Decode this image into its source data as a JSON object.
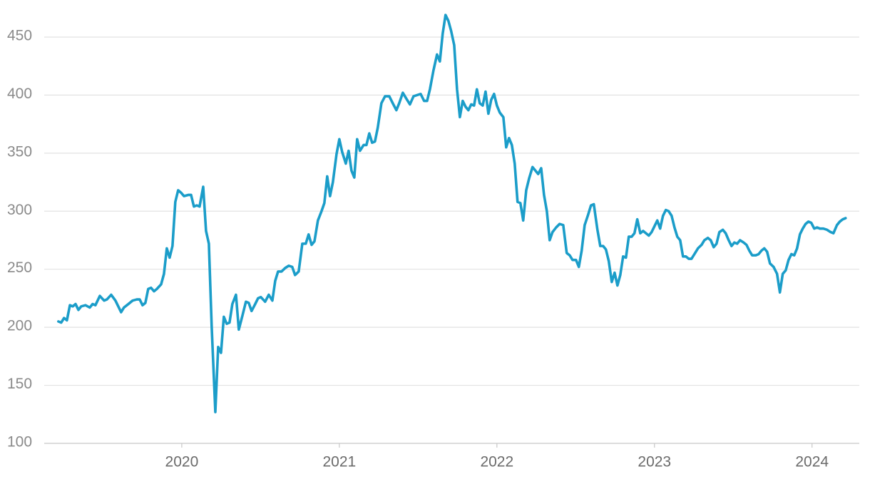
{
  "chart_data": {
    "type": "line",
    "color": "#1b9dc9",
    "grid": true,
    "xlim": [
      2019.127,
      2024.3
    ],
    "xticks": [
      2020,
      2021,
      2022,
      2023,
      2024
    ],
    "ylim": [
      100,
      470
    ],
    "yticks": [
      100,
      150,
      200,
      250,
      300,
      350,
      400,
      450
    ],
    "x": [
      2019.217,
      2019.235,
      2019.253,
      2019.271,
      2019.29,
      2019.308,
      2019.326,
      2019.344,
      2019.362,
      2019.389,
      2019.416,
      2019.434,
      2019.452,
      2019.48,
      2019.507,
      2019.525,
      2019.552,
      2019.579,
      2019.615,
      2019.633,
      2019.661,
      2019.688,
      2019.715,
      2019.733,
      2019.751,
      2019.769,
      2019.787,
      2019.805,
      2019.824,
      2019.842,
      2019.869,
      2019.887,
      2019.905,
      2019.923,
      2019.941,
      2019.959,
      2019.977,
      2019.995,
      2020.014,
      2020.041,
      2020.059,
      2020.077,
      2020.095,
      2020.113,
      2020.136,
      2020.154,
      2020.172,
      2020.19,
      2020.213,
      2020.231,
      2020.249,
      2020.267,
      2020.285,
      2020.303,
      2020.321,
      2020.344,
      2020.362,
      2020.385,
      2020.407,
      2020.425,
      2020.443,
      2020.466,
      2020.484,
      2020.502,
      2020.529,
      2020.552,
      2020.575,
      2020.593,
      2020.611,
      2020.633,
      2020.656,
      2020.679,
      2020.701,
      2020.719,
      2020.742,
      2020.765,
      2020.787,
      2020.805,
      2020.824,
      2020.842,
      2020.864,
      2020.887,
      2020.905,
      2020.923,
      2020.941,
      2020.959,
      2020.982,
      2021.0,
      2021.018,
      2021.041,
      2021.059,
      2021.077,
      2021.095,
      2021.113,
      2021.131,
      2021.154,
      2021.172,
      2021.19,
      2021.208,
      2021.226,
      2021.244,
      2021.267,
      2021.29,
      2021.317,
      2021.339,
      2021.362,
      2021.38,
      2021.403,
      2021.425,
      2021.448,
      2021.471,
      2021.493,
      2021.516,
      2021.538,
      2021.557,
      2021.575,
      2021.597,
      2021.62,
      2021.638,
      2021.656,
      2021.674,
      2021.692,
      2021.71,
      2021.729,
      2021.747,
      2021.765,
      2021.783,
      2021.801,
      2021.819,
      2021.837,
      2021.855,
      2021.873,
      2021.891,
      2021.91,
      2021.928,
      2021.946,
      2021.964,
      2021.982,
      2022.0,
      2022.018,
      2022.041,
      2022.059,
      2022.077,
      2022.095,
      2022.113,
      2022.131,
      2022.149,
      2022.167,
      2022.186,
      2022.204,
      2022.226,
      2022.244,
      2022.262,
      2022.281,
      2022.299,
      2022.317,
      2022.335,
      2022.353,
      2022.376,
      2022.398,
      2022.421,
      2022.443,
      2022.462,
      2022.48,
      2022.502,
      2022.52,
      2022.538,
      2022.557,
      2022.579,
      2022.597,
      2022.615,
      2022.638,
      2022.656,
      2022.674,
      2022.692,
      2022.71,
      2022.729,
      2022.747,
      2022.765,
      2022.783,
      2022.801,
      2022.819,
      2022.837,
      2022.855,
      2022.873,
      2022.891,
      2022.91,
      2022.928,
      2022.946,
      2022.964,
      2022.982,
      2023.0,
      2023.018,
      2023.036,
      2023.054,
      2023.072,
      2023.09,
      2023.109,
      2023.127,
      2023.145,
      2023.163,
      2023.181,
      2023.199,
      2023.217,
      2023.235,
      2023.258,
      2023.276,
      2023.299,
      2023.317,
      2023.339,
      2023.357,
      2023.376,
      2023.394,
      2023.412,
      2023.434,
      2023.452,
      2023.471,
      2023.489,
      2023.507,
      2023.525,
      2023.543,
      2023.566,
      2023.584,
      2023.602,
      2023.62,
      2023.643,
      2023.661,
      2023.679,
      2023.697,
      2023.715,
      2023.733,
      2023.756,
      2023.778,
      2023.796,
      2023.814,
      2023.833,
      2023.851,
      2023.869,
      2023.887,
      2023.905,
      2023.923,
      2023.941,
      2023.959,
      2023.977,
      2023.995,
      2024.014,
      2024.032,
      2024.05,
      2024.072,
      2024.095,
      2024.118,
      2024.136,
      2024.158,
      2024.176,
      2024.195,
      2024.213
    ],
    "values": [
      205,
      204,
      208,
      206,
      219,
      218,
      220,
      215,
      218,
      219,
      217,
      220,
      219,
      227,
      223,
      224,
      228,
      223,
      213,
      217,
      220,
      223,
      224,
      224,
      219,
      221,
      233,
      234,
      231,
      233,
      237,
      246,
      268,
      260,
      270,
      308,
      318,
      316,
      313,
      314,
      314,
      304,
      305,
      304,
      321,
      283,
      272,
      200,
      127,
      183,
      178,
      209,
      203,
      204,
      220,
      228,
      198,
      210,
      222,
      221,
      214,
      220,
      225,
      226,
      222,
      228,
      223,
      240,
      248,
      248,
      251,
      253,
      252,
      245,
      248,
      272,
      272,
      280,
      271,
      274,
      292,
      300,
      307,
      330,
      313,
      325,
      349,
      362,
      351,
      341,
      352,
      335,
      329,
      362,
      352,
      357,
      357,
      367,
      359,
      360,
      372,
      393,
      399,
      399,
      393,
      387,
      393,
      402,
      397,
      392,
      399,
      400,
      401,
      395,
      395,
      405,
      421,
      435,
      429,
      453,
      469,
      464,
      455,
      443,
      405,
      381,
      395,
      390,
      387,
      392,
      391,
      405,
      393,
      391,
      403,
      384,
      396,
      401,
      391,
      385,
      381,
      355,
      363,
      357,
      341,
      308,
      307,
      292,
      318,
      328,
      338,
      335,
      332,
      337,
      314,
      300,
      275,
      282,
      286,
      289,
      288,
      264,
      262,
      258,
      258,
      252,
      266,
      288,
      297,
      305,
      306,
      284,
      270,
      270,
      267,
      257,
      239,
      247,
      236,
      245,
      261,
      260,
      278,
      278,
      281,
      293,
      281,
      283,
      281,
      279,
      282,
      287,
      292,
      285,
      296,
      301,
      300,
      296,
      286,
      278,
      275,
      261,
      261,
      259,
      259,
      264,
      268,
      271,
      275,
      277,
      275,
      269,
      272,
      282,
      284,
      281,
      275,
      270,
      273,
      272,
      275,
      273,
      271,
      266,
      262,
      262,
      263,
      266,
      268,
      265,
      255,
      252,
      246,
      230,
      246,
      249,
      258,
      263,
      262,
      268,
      280,
      285,
      289,
      291,
      290,
      285,
      286,
      285,
      285,
      284,
      282,
      281,
      288,
      291,
      293,
      294
    ]
  }
}
